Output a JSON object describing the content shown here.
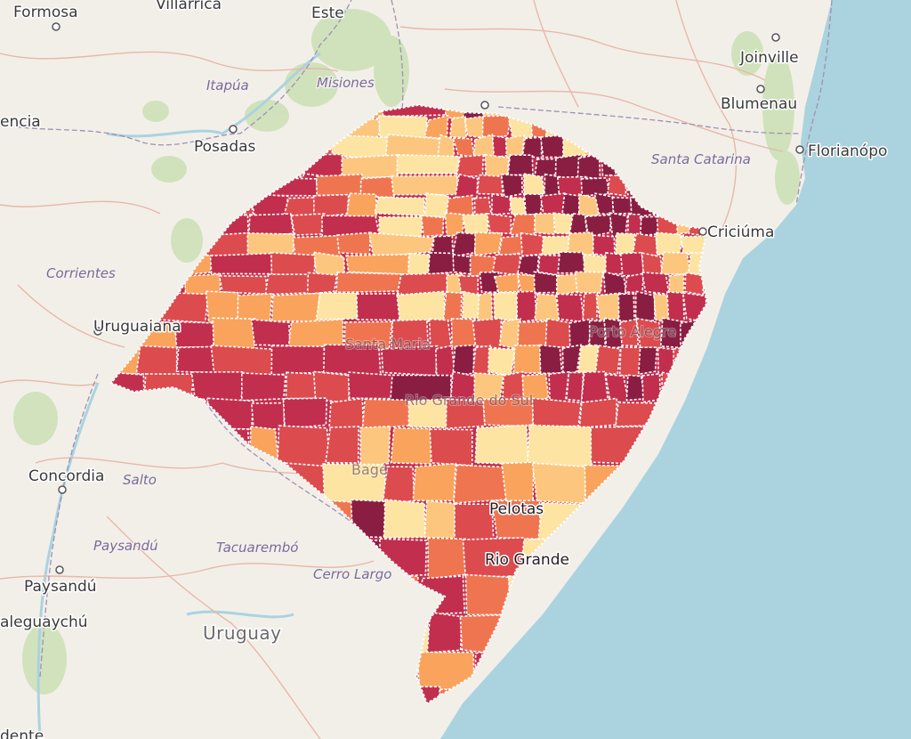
{
  "colors": {
    "land": "#f2efe9",
    "sea": "#aad3df",
    "choropleth": [
      "#fde4a3",
      "#fdc67e",
      "#f9a35c",
      "#ef7550",
      "#dc4b4e",
      "#c22e4d",
      "#8a1e42"
    ]
  },
  "cities": [
    {
      "name": "Formosa"
    },
    {
      "name": "Villarrica"
    },
    {
      "name": "Este"
    },
    {
      "name": "Joinville"
    },
    {
      "name": "Blumenau"
    },
    {
      "name": "Florianópo"
    },
    {
      "name": "encia"
    },
    {
      "name": "Posadas"
    },
    {
      "name": "Criciúma"
    },
    {
      "name": "Uruguaiana"
    },
    {
      "name": "Concordia"
    },
    {
      "name": "Paysandú"
    },
    {
      "name": "aleguaychú"
    },
    {
      "name": "dente"
    },
    {
      "name": "Pelotas"
    },
    {
      "name": "Rio Grande"
    },
    {
      "name": "Santa Maria"
    },
    {
      "name": "Bagé"
    },
    {
      "name": "Porto Alegre"
    }
  ],
  "regions": [
    {
      "name": "Itapúa"
    },
    {
      "name": "Misiones"
    },
    {
      "name": "Santa Catarina"
    },
    {
      "name": "Corrientes"
    },
    {
      "name": "Salto"
    },
    {
      "name": "Paysandú"
    },
    {
      "name": "Tacuarembó"
    },
    {
      "name": "Cerro Largo"
    },
    {
      "name": "Rio Grande do Sul"
    }
  ],
  "countries": [
    {
      "name": "Uruguay"
    }
  ]
}
